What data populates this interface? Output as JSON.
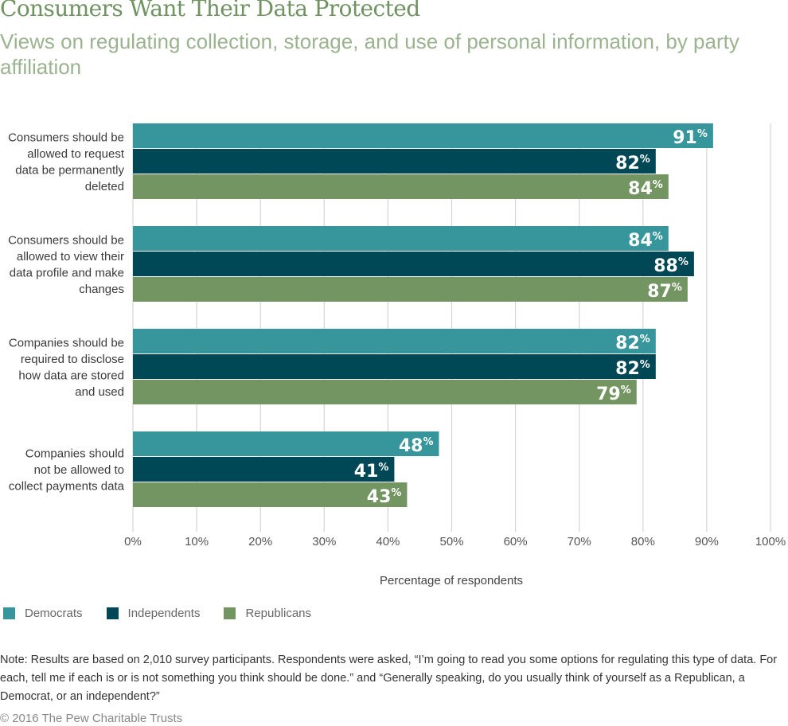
{
  "chart_data": {
    "type": "bar",
    "orientation": "horizontal",
    "title": "Consumers Want Their Data Protected",
    "subtitle": "Views on regulating collection, storage, and use of personal information, by party affiliation",
    "xlabel": "Percentage of respondents",
    "ylabel": "",
    "xlim": [
      0,
      100
    ],
    "grid": true,
    "ticks": [
      "0%",
      "10%",
      "20%",
      "30%",
      "40%",
      "50%",
      "60%",
      "70%",
      "80%",
      "90%",
      "100%"
    ],
    "tick_values": [
      0,
      10,
      20,
      30,
      40,
      50,
      60,
      70,
      80,
      90,
      100
    ],
    "categories": [
      [
        "Consumers should be",
        "allowed to request",
        "data be permanently",
        "deleted"
      ],
      [
        "Consumers should be",
        "allowed to view their",
        "data profile and make",
        "changes"
      ],
      [
        "Companies should be",
        "required to disclose",
        "how data are stored",
        "and used"
      ],
      [
        "Companies should",
        "not be allowed to",
        "collect payments data"
      ]
    ],
    "series": [
      {
        "name": "Democrats",
        "color": "#36969c",
        "values": [
          91,
          84,
          82,
          48
        ]
      },
      {
        "name": "Independents",
        "color": "#014856",
        "values": [
          82,
          88,
          82,
          41
        ]
      },
      {
        "name": "Republicans",
        "color": "#739561",
        "values": [
          84,
          87,
          79,
          43
        ]
      }
    ],
    "value_suffix": "%",
    "legend_position": "bottom-left"
  },
  "note": "Note: Results are based on 2,010 survey participants. Respondents were asked, “I’m going to read you some options for regulating this type of data. For each, tell me if each is or is not something you think should be done.” and “Generally speaking, do you usually think of yourself as a Republican, a Democrat, or an independent?”",
  "copyright": "© 2016 The Pew Charitable Trusts"
}
